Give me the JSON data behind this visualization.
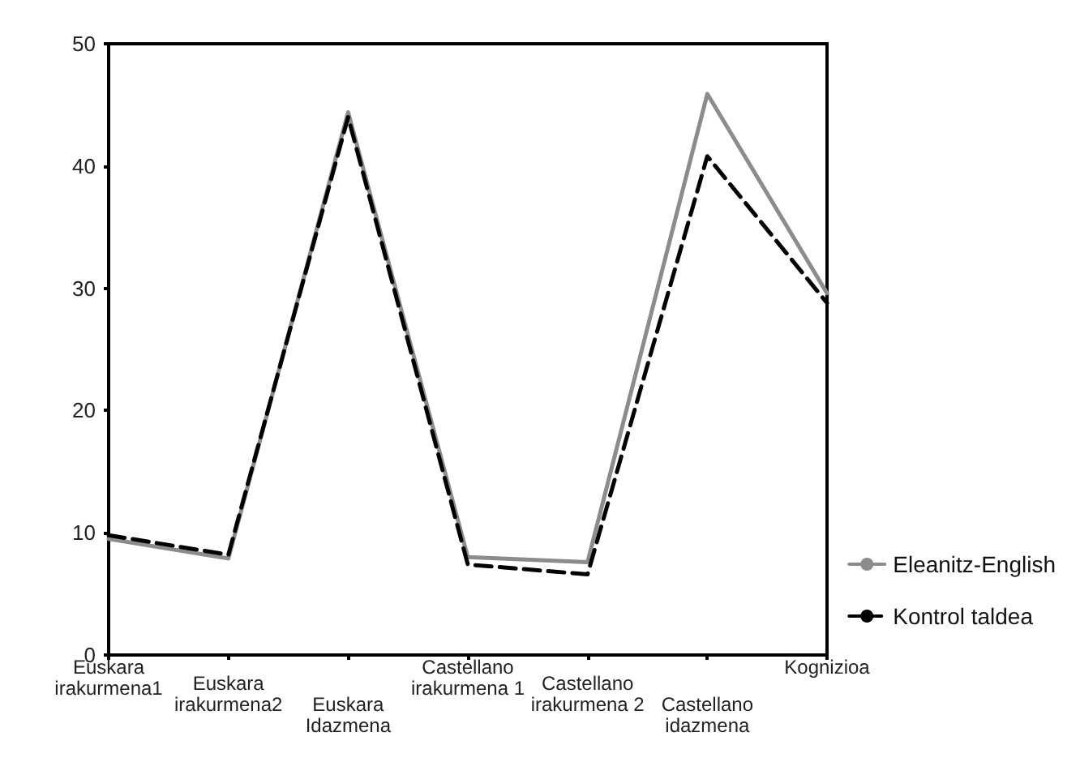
{
  "chart_data": {
    "type": "line",
    "categories": [
      "Euskara irakurmena1",
      "Euskara irakurmena2",
      "Euskara Idazmena",
      "Castellano irakurmena 1",
      "Castellano irakurmena 2",
      "Castellano idazmena",
      "Kognizioa"
    ],
    "series": [
      {
        "name": "Eleanitz-English",
        "color": "#8c8c8c",
        "line_style": "solid",
        "values": [
          9.5,
          7.9,
          44.4,
          8.0,
          7.6,
          45.9,
          29.6
        ]
      },
      {
        "name": "Kontrol taldea",
        "color": "#000000",
        "line_style": "dashed",
        "values": [
          9.8,
          8.2,
          44.0,
          7.4,
          6.6,
          40.8,
          28.8
        ]
      }
    ],
    "ylim": [
      0,
      50
    ],
    "yticks": [
      0,
      10,
      20,
      30,
      40,
      50
    ],
    "grid": false,
    "legend": "bottom right",
    "marker": "none"
  }
}
